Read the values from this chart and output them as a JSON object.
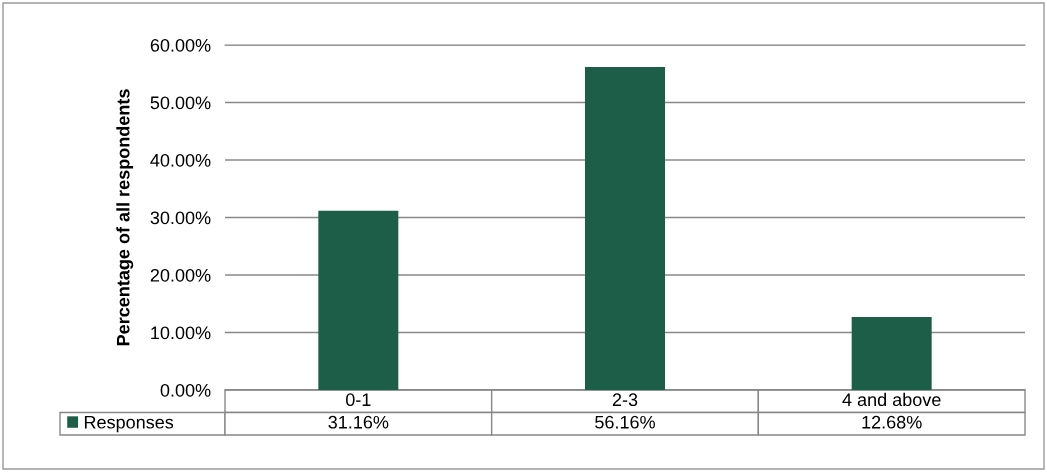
{
  "chart_data": {
    "type": "bar",
    "ylabel": "Percentage of all respondents",
    "categories": [
      "0-1",
      "2-3",
      "4 and above"
    ],
    "series": [
      {
        "name": "Responses",
        "color": "#1d5e48",
        "values": [
          31.16,
          56.16,
          12.68
        ],
        "value_labels": [
          "31.16%",
          "56.16%",
          "12.68%"
        ]
      }
    ],
    "ylim": [
      0,
      60
    ],
    "yticks": [
      {
        "value": 0,
        "label": "0.00%"
      },
      {
        "value": 10,
        "label": "10.00%"
      },
      {
        "value": 20,
        "label": "20.00%"
      },
      {
        "value": 30,
        "label": "30.00%"
      },
      {
        "value": 40,
        "label": "40.00%"
      },
      {
        "value": 50,
        "label": "50.00%"
      },
      {
        "value": 60,
        "label": "60.00%"
      }
    ],
    "grid": "y",
    "legend": "bottom"
  }
}
